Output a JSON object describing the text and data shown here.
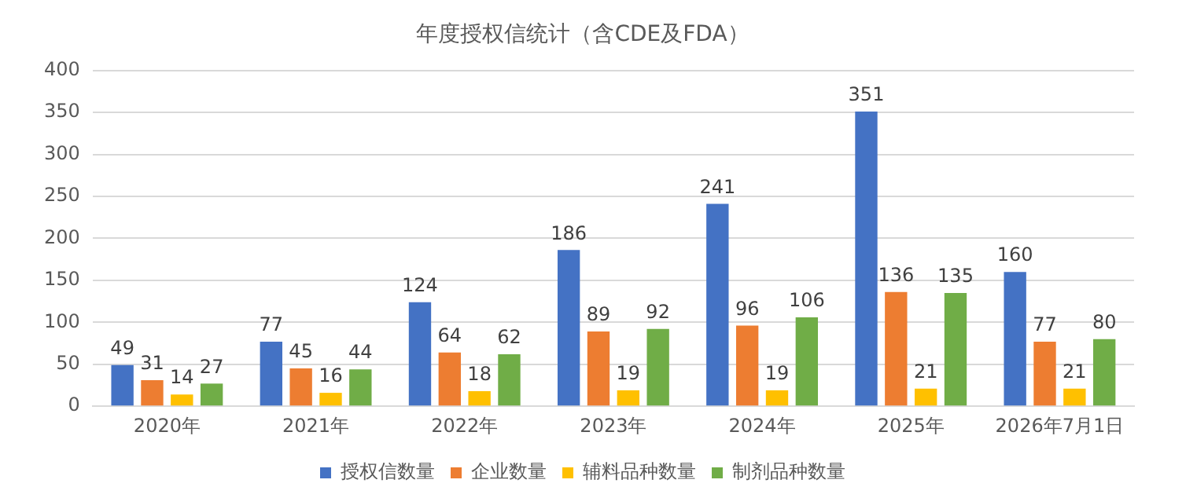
{
  "chart_data": {
    "type": "bar",
    "title": "年度授权信统计（含CDE及FDA）",
    "categories": [
      "2020年",
      "2021年",
      "2022年",
      "2023年",
      "2024年",
      "2025年",
      "2026年7月1日"
    ],
    "series": [
      {
        "name": "授权信数量",
        "color": "#4472c4",
        "values": [
          49,
          77,
          124,
          186,
          241,
          351,
          160
        ]
      },
      {
        "name": "企业数量",
        "color": "#ed7d31",
        "values": [
          31,
          45,
          64,
          89,
          96,
          136,
          77
        ]
      },
      {
        "name": "辅料品种数量",
        "color": "#ffc000",
        "values": [
          14,
          16,
          18,
          19,
          19,
          21,
          21
        ]
      },
      {
        "name": "制剂品种数量",
        "color": "#70ad47",
        "values": [
          27,
          44,
          62,
          92,
          106,
          135,
          80
        ]
      }
    ],
    "ylim": [
      0,
      400
    ],
    "yticks": [
      0,
      50,
      100,
      150,
      200,
      250,
      300,
      350,
      400
    ],
    "grid": "y",
    "legend": "bottom",
    "data_labels": true
  }
}
